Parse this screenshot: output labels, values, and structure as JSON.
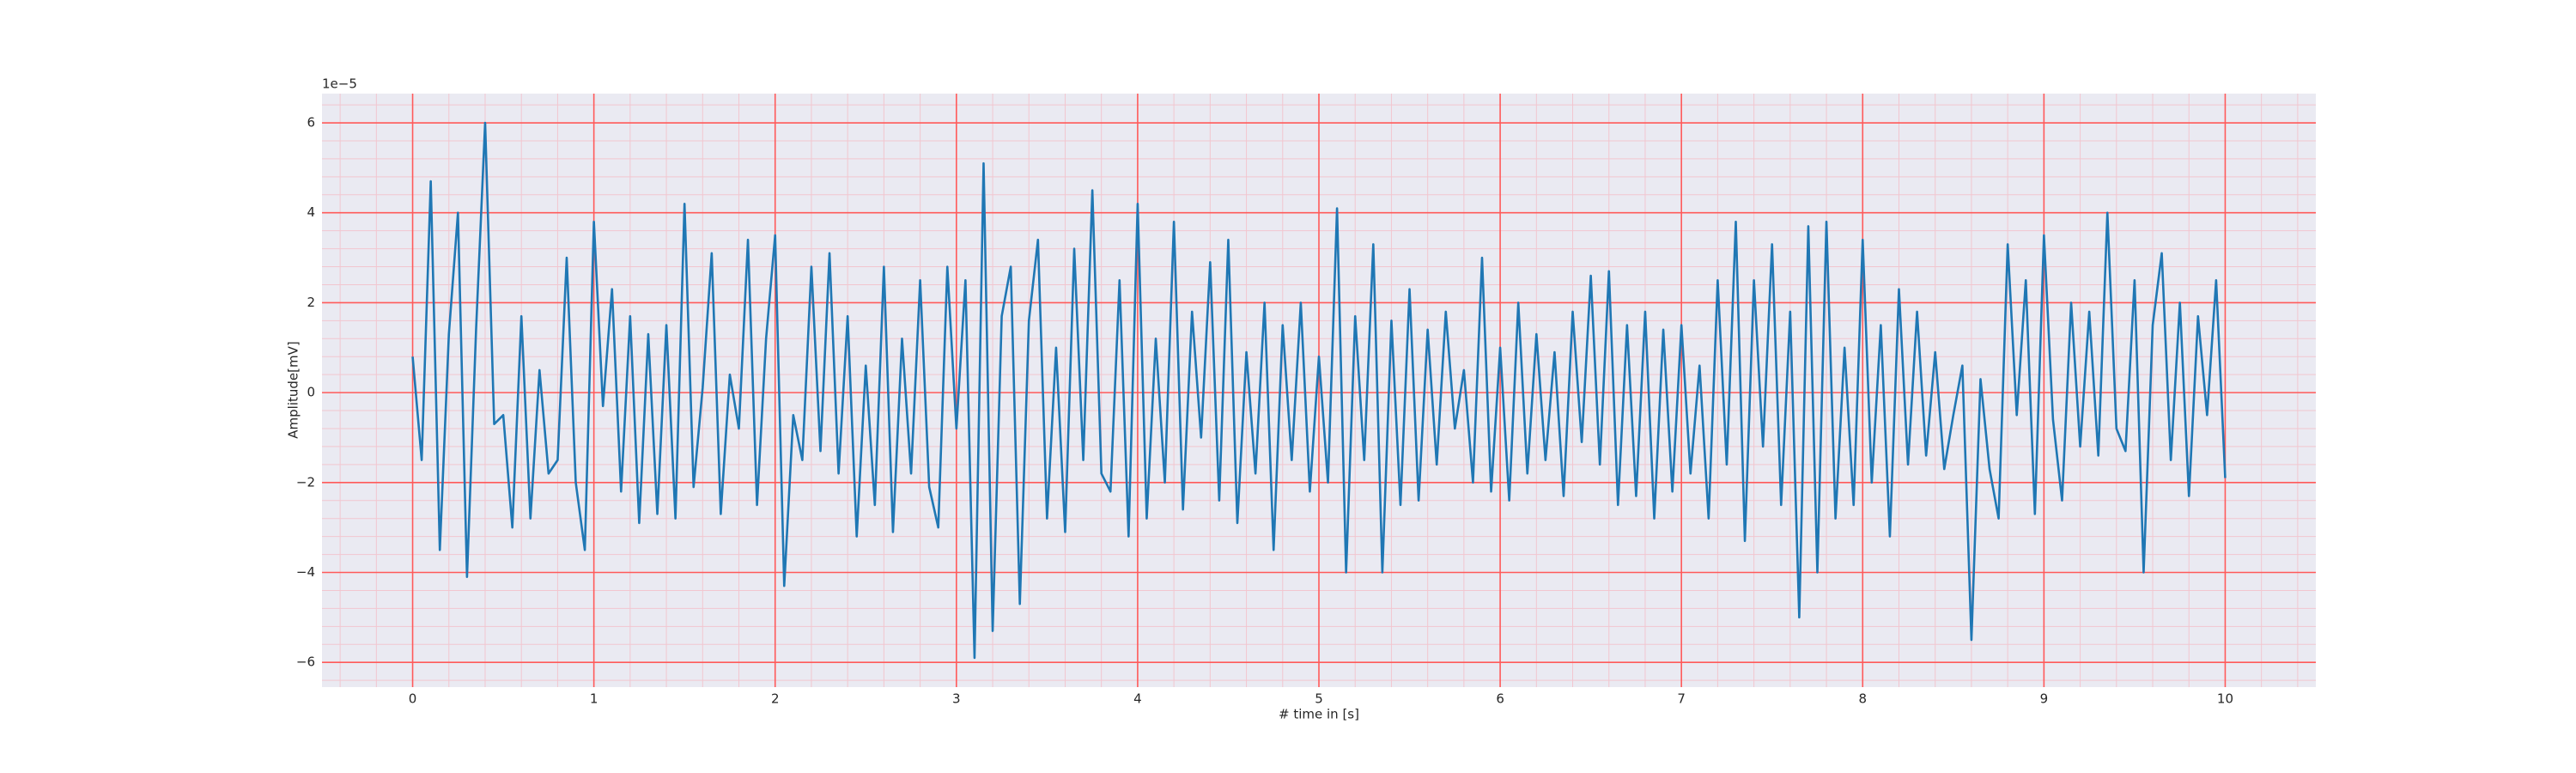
{
  "chart_data": {
    "type": "line",
    "xlabel": "# time in [s]",
    "ylabel": "Amplitude[mV]",
    "offset_text": "1e−5",
    "color": "#1f77b4",
    "background": "#eaeaf2",
    "grid": {
      "major_color": "#ff5a5a",
      "minor_color": "#f2c6cf"
    },
    "xlim": [
      -0.5,
      10.5
    ],
    "ylim": [
      -6.55,
      6.65
    ],
    "xticks": [
      0,
      1,
      2,
      3,
      4,
      5,
      6,
      7,
      8,
      9,
      10
    ],
    "yticks": [
      {
        "value": -6,
        "label": "−6"
      },
      {
        "value": -4,
        "label": "−4"
      },
      {
        "value": -2,
        "label": "−2"
      },
      0,
      2,
      4,
      6
    ],
    "xminorticks": [
      -0.4,
      -0.2,
      0.2,
      0.4,
      0.6,
      0.8,
      1.2,
      1.4,
      1.6,
      1.8,
      2.2,
      2.4,
      2.6,
      2.8,
      3.2,
      3.4,
      3.6,
      3.8,
      4.2,
      4.4,
      4.6,
      4.8,
      5.2,
      5.4,
      5.6,
      5.8,
      6.2,
      6.4,
      6.6,
      6.8,
      7.2,
      7.4,
      7.6,
      7.8,
      8.2,
      8.4,
      8.6,
      8.8,
      9.2,
      9.4,
      9.6,
      9.8,
      10.2,
      10.4
    ],
    "yminorticks": [
      -6.4,
      -5.6,
      -5.2,
      -4.8,
      -4.4,
      -3.6,
      -3.2,
      -2.8,
      -2.4,
      -1.6,
      -1.2,
      -0.8,
      -0.4,
      0.4,
      0.8,
      1.2,
      1.6,
      2.4,
      2.8,
      3.2,
      3.6,
      4.4,
      4.8,
      5.2,
      5.6,
      6.4
    ],
    "x": [
      0,
      0.05,
      0.1,
      0.15,
      0.2,
      0.25,
      0.3,
      0.35,
      0.4,
      0.45,
      0.5,
      0.55,
      0.6,
      0.65,
      0.7,
      0.75,
      0.8,
      0.85,
      0.9,
      0.95,
      1,
      1.05,
      1.1,
      1.15,
      1.2,
      1.25,
      1.3,
      1.35,
      1.4,
      1.45,
      1.5,
      1.55,
      1.6,
      1.65,
      1.7,
      1.75,
      1.8,
      1.85,
      1.9,
      1.95,
      2,
      2.05,
      2.1,
      2.15,
      2.2,
      2.25,
      2.3,
      2.35,
      2.4,
      2.45,
      2.5,
      2.55,
      2.6,
      2.65,
      2.7,
      2.75,
      2.8,
      2.85,
      2.9,
      2.95,
      3,
      3.05,
      3.1,
      3.15,
      3.2,
      3.25,
      3.3,
      3.35,
      3.4,
      3.45,
      3.5,
      3.55,
      3.6,
      3.65,
      3.7,
      3.75,
      3.8,
      3.85,
      3.9,
      3.95,
      4,
      4.05,
      4.1,
      4.15,
      4.2,
      4.25,
      4.3,
      4.35,
      4.4,
      4.45,
      4.5,
      4.55,
      4.6,
      4.65,
      4.7,
      4.75,
      4.8,
      4.85,
      4.9,
      4.95,
      5,
      5.05,
      5.1,
      5.15,
      5.2,
      5.25,
      5.3,
      5.35,
      5.4,
      5.45,
      5.5,
      5.55,
      5.6,
      5.65,
      5.7,
      5.75,
      5.8,
      5.85,
      5.9,
      5.95,
      6,
      6.05,
      6.1,
      6.15,
      6.2,
      6.25,
      6.3,
      6.35,
      6.4,
      6.45,
      6.5,
      6.55,
      6.6,
      6.65,
      6.7,
      6.75,
      6.8,
      6.85,
      6.9,
      6.95,
      7,
      7.05,
      7.1,
      7.15,
      7.2,
      7.25,
      7.3,
      7.35,
      7.4,
      7.45,
      7.5,
      7.55,
      7.6,
      7.65,
      7.7,
      7.75,
      7.8,
      7.85,
      7.9,
      7.95,
      8,
      8.05,
      8.1,
      8.15,
      8.2,
      8.25,
      8.3,
      8.35,
      8.4,
      8.45,
      8.5,
      8.55,
      8.6,
      8.65,
      8.7,
      8.75,
      8.8,
      8.85,
      8.9,
      8.95,
      9,
      9.05,
      9.1,
      9.15,
      9.2,
      9.25,
      9.3,
      9.35,
      9.4,
      9.45,
      9.5,
      9.55,
      9.6,
      9.65,
      9.7,
      9.75,
      9.8,
      9.85,
      9.9,
      9.95,
      10
    ],
    "values": [
      0.8,
      -1.5,
      4.7,
      -3.5,
      1.3,
      4.0,
      -4.1,
      1.4,
      6.0,
      -0.7,
      -0.5,
      -3.0,
      1.7,
      -2.8,
      0.5,
      -1.8,
      -1.5,
      3.0,
      -2.0,
      -3.5,
      3.8,
      -0.3,
      2.3,
      -2.2,
      1.7,
      -2.9,
      1.3,
      -2.7,
      1.5,
      -2.8,
      4.2,
      -2.1,
      0.1,
      3.1,
      -2.7,
      0.4,
      -0.8,
      3.4,
      -2.5,
      1.2,
      3.5,
      -4.3,
      -0.5,
      -1.5,
      2.8,
      -1.3,
      3.1,
      -1.8,
      1.7,
      -3.2,
      0.6,
      -2.5,
      2.8,
      -3.1,
      1.2,
      -1.8,
      2.5,
      -2.1,
      -3.0,
      2.8,
      -0.8,
      2.5,
      -5.9,
      5.1,
      -5.3,
      1.7,
      2.8,
      -4.7,
      1.6,
      3.4,
      -2.8,
      1.0,
      -3.1,
      3.2,
      -1.5,
      4.5,
      -1.8,
      -2.2,
      2.5,
      -3.2,
      4.2,
      -2.8,
      1.2,
      -2.0,
      3.8,
      -2.6,
      1.8,
      -1.0,
      2.9,
      -2.4,
      3.4,
      -2.9,
      0.9,
      -1.8,
      2.0,
      -3.5,
      1.5,
      -1.5,
      2.0,
      -2.2,
      0.8,
      -2.0,
      4.1,
      -4.0,
      1.7,
      -1.5,
      3.3,
      -4.0,
      1.6,
      -2.5,
      2.3,
      -2.4,
      1.4,
      -1.6,
      1.8,
      -0.8,
      0.5,
      -2.0,
      3.0,
      -2.2,
      1.0,
      -2.4,
      2.0,
      -1.8,
      1.3,
      -1.5,
      0.9,
      -2.3,
      1.8,
      -1.1,
      2.6,
      -1.6,
      2.7,
      -2.5,
      1.5,
      -2.3,
      1.8,
      -2.8,
      1.4,
      -2.2,
      1.5,
      -1.8,
      0.6,
      -2.8,
      2.5,
      -1.6,
      3.8,
      -3.3,
      2.5,
      -1.2,
      3.3,
      -2.5,
      1.8,
      -5.0,
      3.7,
      -4.0,
      3.8,
      -2.8,
      1.0,
      -2.5,
      3.4,
      -2.0,
      1.5,
      -3.2,
      2.3,
      -1.6,
      1.8,
      -1.4,
      0.9,
      -1.7,
      -0.5,
      0.6,
      -5.5,
      0.3,
      -1.7,
      -2.8,
      3.3,
      -0.5,
      2.5,
      -2.7,
      3.5,
      -0.6,
      -2.4,
      2.0,
      -1.2,
      1.8,
      -1.4,
      4.0,
      -0.8,
      -1.3,
      2.5,
      -4.0,
      1.5,
      3.1,
      -1.5,
      2.0,
      -2.3,
      1.7,
      -0.5,
      2.5,
      -1.9
    ]
  }
}
